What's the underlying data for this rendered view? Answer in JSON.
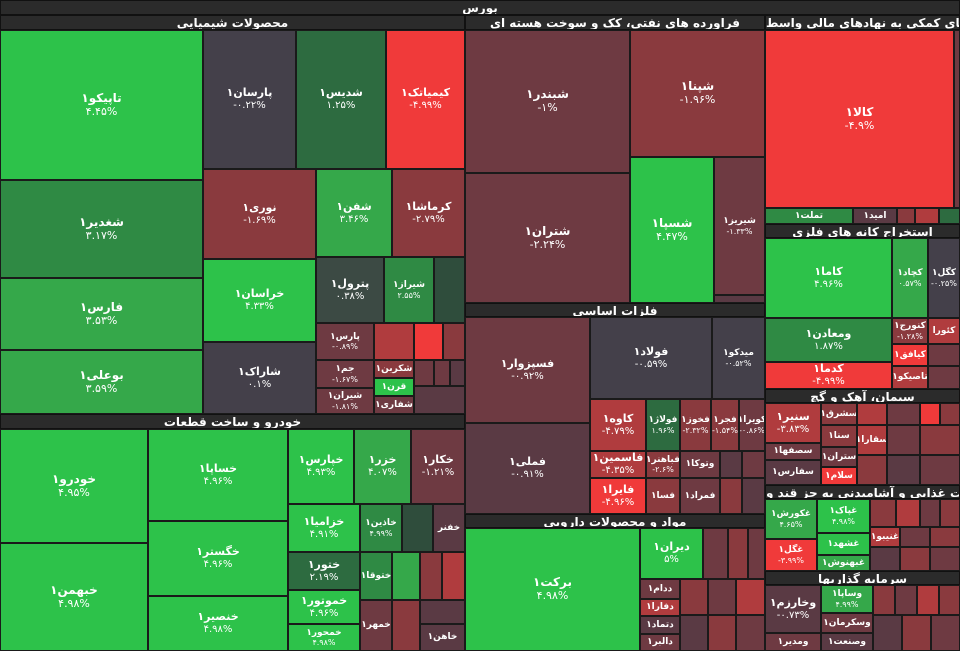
{
  "app_title": "بورس",
  "sectors": {
    "chemical": "محصولات شیمیایی",
    "refinery": "فراورده های نفتی، کک و سوخت هسته ای",
    "financial": "فعالیتهای کمکی به نهادهای مالی واسط",
    "metal_mining": "استخراج کانه های فلزی",
    "basic_metals": "فلزات اساسی",
    "cement": "سیمان، آهک و گچ",
    "auto": "خودرو و ساخت قطعات",
    "pharma": "مواد و محصولات دارویی",
    "food": "محصولات غذایی و آشامیدنی به جز قند و",
    "investment": "سرمایه گذاریها"
  },
  "tiles": {
    "tapiko": {
      "name": "تاپیکو۱",
      "pct": "۴.۴۵%"
    },
    "shadir": {
      "name": "شغدیر۱",
      "pct": "۳.۱۷%"
    },
    "fars": {
      "name": "فارس۱",
      "pct": "۳.۵۳%"
    },
    "bouali": {
      "name": "بوعلی۱",
      "pct": "۳.۵۹%"
    },
    "parsan": {
      "name": "پارسان۱",
      "pct": "-۰.۲۲%"
    },
    "shedis": {
      "name": "شدیس۱",
      "pct": "۱.۲۵%"
    },
    "kimiatek": {
      "name": "کیمیاتک۱",
      "pct": "-۴.۹۹%"
    },
    "nouri": {
      "name": "نوری۱",
      "pct": "-۱.۶۹%"
    },
    "shafan": {
      "name": "شفن۱",
      "pct": "۳.۴۶%"
    },
    "karmasha": {
      "name": "کرماشا۱",
      "pct": "-۲.۷۹%"
    },
    "khorasan": {
      "name": "خراسان۱",
      "pct": "۴.۳۳%"
    },
    "petrol": {
      "name": "پترول۱",
      "pct": "۰.۳۸%"
    },
    "shiraz": {
      "name": "شیراز۱",
      "pct": "۲.۵۵%"
    },
    "sharak": {
      "name": "شاراک۱",
      "pct": "۰.۱%"
    },
    "pars": {
      "name": "پارس۱",
      "pct": "-۰.۸۹%"
    },
    "jam": {
      "name": "جم۱",
      "pct": "-۱.۶۷%"
    },
    "shekarin": {
      "name": "شکربن۱",
      "pct": ""
    },
    "qarn": {
      "name": "قرن۱",
      "pct": ""
    },
    "shiran": {
      "name": "شیران۱",
      "pct": "-۱.۸۱%"
    },
    "shafari": {
      "name": "شفاری۱",
      "pct": ""
    },
    "shbandar": {
      "name": "شبندر۱",
      "pct": "-۱%"
    },
    "shpna": {
      "name": "شپنا۱",
      "pct": "-۱.۹۶%"
    },
    "shtran": {
      "name": "شتران۱",
      "pct": "-۲.۲۴%"
    },
    "shesepa": {
      "name": "شسپا۱",
      "pct": "۴.۴۷%"
    },
    "shraz2": {
      "name": "شیریز۱",
      "pct": "-۱.۳۳%"
    },
    "kala": {
      "name": "کالا۱",
      "pct": "-۴.۹%"
    },
    "tamalat": {
      "name": "تملت۱",
      "pct": ""
    },
    "amid": {
      "name": "امید۱",
      "pct": ""
    },
    "kama": {
      "name": "کاما۱",
      "pct": "۴.۹۶%"
    },
    "kechad": {
      "name": "کچاد۱",
      "pct": "۰.۵۷%"
    },
    "kegol": {
      "name": "کگل۱",
      "pct": "-۰.۲۵%"
    },
    "madan": {
      "name": "ومعادن۱",
      "pct": "۱.۸۷%"
    },
    "konoraj": {
      "name": "کنورج۱",
      "pct": "-۱.۲۸%"
    },
    "kaora": {
      "name": "کئورا",
      "pct": ""
    },
    "kadama": {
      "name": "کدما۱",
      "pct": "-۴.۹۹%"
    },
    "kifagh": {
      "name": "کیافق۱",
      "pct": ""
    },
    "tasikou": {
      "name": "تاصیکو۱",
      "pct": ""
    },
    "fasipzovar": {
      "name": "فسپزوار۱",
      "pct": "-۰.۹۲%"
    },
    "foolad": {
      "name": "فولاد۱",
      "pct": "-۰.۵۹%"
    },
    "mydko": {
      "name": "میدکو۱",
      "pct": "-۰.۵۲%"
    },
    "femeli": {
      "name": "فملی۱",
      "pct": "-۰.۹۱%"
    },
    "kave": {
      "name": "کاوه۱",
      "pct": "-۴.۷۹%"
    },
    "folaj": {
      "name": "فولاژ۱",
      "pct": "۱.۹۶%"
    },
    "fekhouz": {
      "name": "فخوز۱",
      "pct": "-۲.۳۲%"
    },
    "fajr": {
      "name": "فجر۱",
      "pct": "-۱.۵۴%"
    },
    "kovira": {
      "name": "کویرا۱",
      "pct": "-۰.۸۶%"
    },
    "fasmin": {
      "name": "فاسمین۱",
      "pct": "-۴.۳۵%"
    },
    "faahir": {
      "name": "فباهنر۱",
      "pct": "-۲.۶%"
    },
    "vatouka": {
      "name": "وتوکا۱",
      "pct": ""
    },
    "fayra": {
      "name": "فایرا۱",
      "pct": "-۴.۹۶%"
    },
    "fesa": {
      "name": "فسا۱",
      "pct": ""
    },
    "famrad": {
      "name": "فمراد۱",
      "pct": ""
    },
    "sanir": {
      "name": "سنیر۱",
      "pct": "-۳.۸۳%"
    },
    "sesharq": {
      "name": "سشرق۱",
      "pct": ""
    },
    "sena": {
      "name": "سنا۱",
      "pct": ""
    },
    "sefahan": {
      "name": "سصفها۱",
      "pct": ""
    },
    "setran": {
      "name": "ستران۱",
      "pct": ""
    },
    "seqara": {
      "name": "سقارا۱",
      "pct": ""
    },
    "sefaras": {
      "name": "سفارس۱",
      "pct": ""
    },
    "selam": {
      "name": "سلام۱",
      "pct": ""
    },
    "khodro": {
      "name": "خودرو۱",
      "pct": "۴.۹۵%"
    },
    "khsapa": {
      "name": "خساپا۱",
      "pct": "۴.۹۶%"
    },
    "khpars": {
      "name": "خپارس۱",
      "pct": "۴.۹۳%"
    },
    "khazar": {
      "name": "خزر۱",
      "pct": "۴.۰۷%"
    },
    "khakar": {
      "name": "خکار۱",
      "pct": "-۱.۲۱%"
    },
    "khbahman": {
      "name": "خبهمن۱",
      "pct": "۴.۹۸%"
    },
    "khgostar": {
      "name": "خگستر۱",
      "pct": "۴.۹۶%"
    },
    "khzamia": {
      "name": "خزامیا۱",
      "pct": "۴.۹۱%"
    },
    "khzhaen": {
      "name": "خاذین۱",
      "pct": "۴.۹۹%"
    },
    "khtar": {
      "name": "ختور۱",
      "pct": "۲.۱۹%"
    },
    "khtoga": {
      "name": "ختوقا۱",
      "pct": ""
    },
    "khmotor": {
      "name": "خموتور۱",
      "pct": "۴.۹۶%"
    },
    "khnasir": {
      "name": "خنصیر۱",
      "pct": "۴.۹۸%"
    },
    "khmehvar": {
      "name": "خمحور۱",
      "pct": "۴.۹۸%"
    },
    "khmehr": {
      "name": "خمهر۱",
      "pct": ""
    },
    "khaahan": {
      "name": "خاهن۱",
      "pct": ""
    },
    "khfnar": {
      "name": "خفنر",
      "pct": ""
    },
    "barekat": {
      "name": "برکت۱",
      "pct": "۴.۹۸%"
    },
    "diran": {
      "name": "دیران۱",
      "pct": "۵%"
    },
    "dedam": {
      "name": "ددام۱",
      "pct": ""
    },
    "dfaraj": {
      "name": "دفارا۱",
      "pct": ""
    },
    "dtmad": {
      "name": "دتماد۱",
      "pct": ""
    },
    "dalbor": {
      "name": "دالبر۱",
      "pct": ""
    },
    "ghagha": {
      "name": "غپاک۱",
      "pct": "۴.۹۸%"
    },
    "gakorosh": {
      "name": "غکورش۱",
      "pct": "۴.۶۵%"
    },
    "gshahd": {
      "name": "غشهد۱",
      "pct": ""
    },
    "gnab": {
      "name": "غنیبو۱",
      "pct": ""
    },
    "ggol": {
      "name": "غگل۱",
      "pct": "-۳.۹۹%"
    },
    "gbehpak": {
      "name": "غبهنوش۱",
      "pct": ""
    },
    "vkharazm": {
      "name": "وخارزم۱",
      "pct": "-۰.۷۳%"
    },
    "vsapa": {
      "name": "وساپا۱",
      "pct": "۴.۹۹%"
    },
    "vsakhtman": {
      "name": "وسکرمان۱",
      "pct": ""
    },
    "vmadir": {
      "name": "ومدیر۱",
      "pct": ""
    },
    "vsanat": {
      "name": "وصنعت۱",
      "pct": ""
    }
  },
  "colors": {
    "strong_green": "#2dc24a",
    "strong_red": "#f03a3a",
    "neutral": "#44404a"
  }
}
